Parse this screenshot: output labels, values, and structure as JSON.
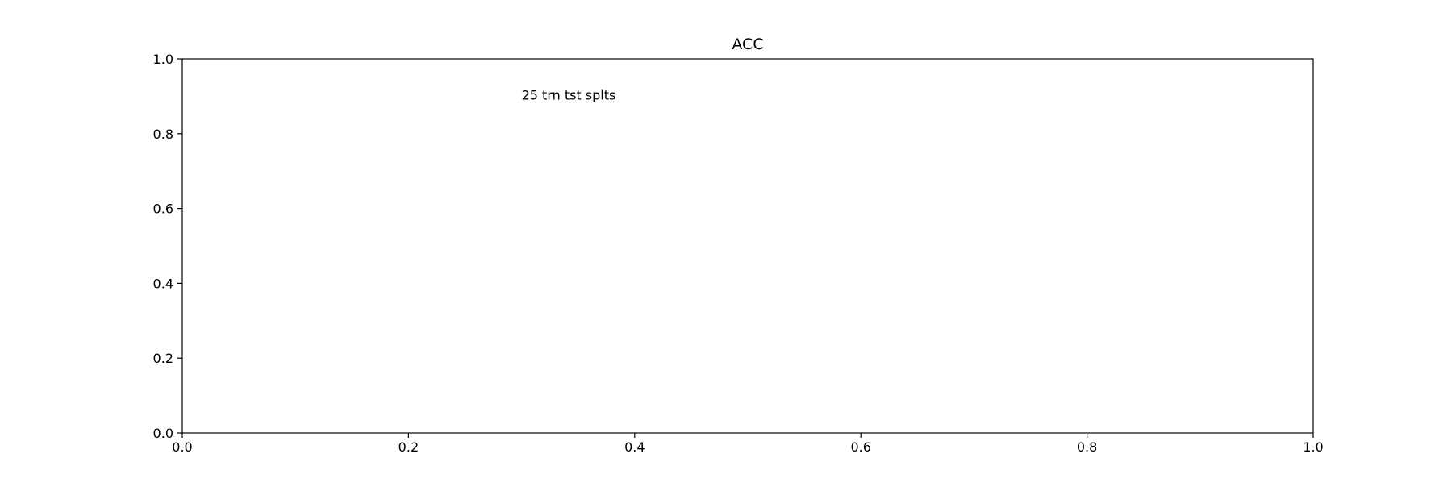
{
  "chart_data": {
    "type": "line",
    "title": "ACC",
    "xlabel": "",
    "ylabel": "",
    "xlim": [
      0.0,
      1.0
    ],
    "ylim": [
      0.0,
      1.0
    ],
    "x_ticks": [
      "0.0",
      "0.2",
      "0.4",
      "0.6",
      "0.8",
      "1.0"
    ],
    "y_ticks": [
      "0.0",
      "0.2",
      "0.4",
      "0.6",
      "0.8",
      "1.0"
    ],
    "grid": false,
    "series": [],
    "annotations": [
      {
        "text": "25 trn tst splts",
        "x": 0.3,
        "y": 0.9
      }
    ]
  }
}
